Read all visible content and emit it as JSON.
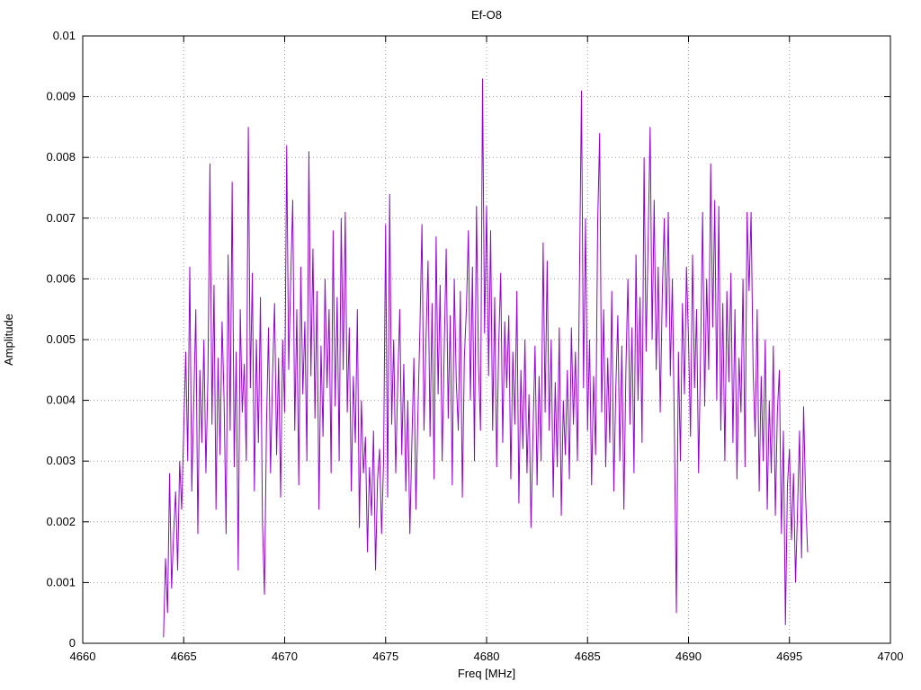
{
  "chart_data": {
    "type": "line",
    "title": "Ef-O8",
    "xlabel": "Freq [MHz]",
    "ylabel": "Amplitude",
    "xlim": [
      4660,
      4700
    ],
    "ylim": [
      0,
      0.01
    ],
    "x_ticks": [
      4660,
      4665,
      4670,
      4675,
      4680,
      4685,
      4690,
      4695,
      4700
    ],
    "y_ticks": [
      0,
      0.001,
      0.002,
      0.003,
      0.004,
      0.005,
      0.006,
      0.007,
      0.008,
      0.009,
      0.01
    ],
    "y_tick_labels": [
      "0",
      "0.001",
      "0.002",
      "0.003",
      "0.004",
      "0.005",
      "0.006",
      "0.007",
      "0.008",
      "0.009",
      "0.01"
    ],
    "grid": true,
    "legend": "none",
    "line_color": "#9400d3",
    "x_start": 4664.0,
    "x_step": 0.1,
    "values_scale": 0.0001,
    "values": [
      1,
      14,
      5,
      28,
      9,
      18,
      25,
      12,
      30,
      22,
      35,
      48,
      30,
      62,
      25,
      40,
      55,
      18,
      45,
      33,
      50,
      28,
      44,
      79,
      36,
      59,
      22,
      47,
      31,
      53,
      40,
      18,
      64,
      35,
      76,
      29,
      48,
      12,
      55,
      38,
      46,
      30,
      85,
      42,
      61,
      25,
      50,
      33,
      57,
      20,
      8,
      36,
      52,
      28,
      44,
      56,
      31,
      47,
      24,
      50,
      38,
      82,
      45,
      60,
      73,
      35,
      55,
      26,
      62,
      41,
      53,
      30,
      81,
      44,
      65,
      37,
      58,
      22,
      49,
      34,
      60,
      42,
      55,
      28,
      68,
      39,
      57,
      30,
      70,
      45,
      71,
      38,
      52,
      25,
      44,
      33,
      55,
      19,
      40,
      28,
      34,
      15,
      29,
      21,
      35,
      12,
      27,
      32,
      18,
      30,
      69,
      24,
      74,
      36,
      50,
      28,
      43,
      55,
      31,
      46,
      25,
      40,
      18,
      33,
      47,
      22,
      38,
      52,
      69,
      35,
      50,
      63,
      34,
      56,
      27,
      67,
      41,
      59,
      30,
      48,
      65,
      37,
      54,
      26,
      60,
      43,
      35,
      58,
      24,
      47,
      55,
      68,
      40,
      62,
      30,
      72,
      46,
      35,
      93,
      51,
      72,
      44,
      68,
      35,
      57,
      29,
      49,
      61,
      33,
      53,
      42,
      54,
      27,
      48,
      36,
      58,
      23,
      45,
      32,
      50,
      28,
      41,
      19,
      35,
      49,
      26,
      44,
      30,
      66,
      38,
      63,
      35,
      50,
      24,
      43,
      29,
      52,
      21,
      40,
      31,
      45,
      27,
      52,
      36,
      48,
      30,
      60,
      91,
      42,
      70,
      35,
      50,
      26,
      44,
      31,
      69,
      84,
      38,
      55,
      29,
      47,
      33,
      58,
      25,
      42,
      54,
      30,
      49,
      22,
      45,
      60,
      36,
      52,
      28,
      64,
      40,
      57,
      33,
      80,
      48,
      66,
      85,
      50,
      73,
      45,
      62,
      38,
      57,
      70,
      52,
      71,
      44,
      60,
      35,
      5,
      48,
      30,
      56,
      41,
      62,
      50,
      34,
      64,
      42,
      55,
      28,
      48,
      71,
      39,
      60,
      45,
      79,
      52,
      73,
      40,
      72,
      35,
      56,
      30,
      58,
      43,
      61,
      33,
      55,
      27,
      47,
      38,
      60,
      29,
      71,
      58,
      71,
      45,
      34,
      55,
      25,
      44,
      30,
      50,
      22,
      40,
      28,
      49,
      21,
      38,
      45,
      18,
      35,
      3,
      26,
      32,
      17,
      28,
      10,
      22,
      35,
      14,
      39,
      24,
      15
    ]
  }
}
